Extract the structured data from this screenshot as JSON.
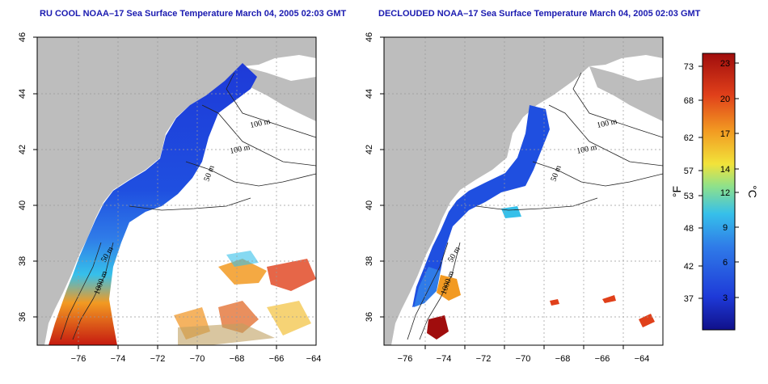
{
  "panels": {
    "left": {
      "title": "RU COOL NOAA–17 Sea Surface Temperature March 04, 2005 02:03 GMT"
    },
    "right": {
      "title": "DECLOUDED NOAA–17 Sea Surface Temperature March 04, 2005 02:03 GMT"
    }
  },
  "axes": {
    "x_ticks": [
      "−76",
      "−74",
      "−72",
      "−70",
      "−68",
      "−66",
      "−64"
    ],
    "y_ticks": [
      "46",
      "44",
      "42",
      "40",
      "38",
      "36"
    ]
  },
  "contour_labels": [
    "100 m",
    "100 m",
    "50 m",
    "50 m",
    "1000 m"
  ],
  "colorbar": {
    "fahrenheit_unit": "°F",
    "celsius_unit": "°C",
    "fahrenheit_ticks": [
      "73",
      "68",
      "62",
      "57",
      "53",
      "48",
      "42",
      "37"
    ],
    "celsius_ticks": [
      "23",
      "20",
      "17",
      "14",
      "12",
      "9",
      "6",
      "3"
    ],
    "colors": [
      "#10108a",
      "#1e3ad8",
      "#2f7be8",
      "#36c0ea",
      "#8fe18a",
      "#f2e33a",
      "#f29a22",
      "#e0401a",
      "#a00d0d"
    ]
  },
  "colors": {
    "land": "#bdbdbd",
    "ocean": "#ffffff",
    "title": "#1a1ab0"
  }
}
